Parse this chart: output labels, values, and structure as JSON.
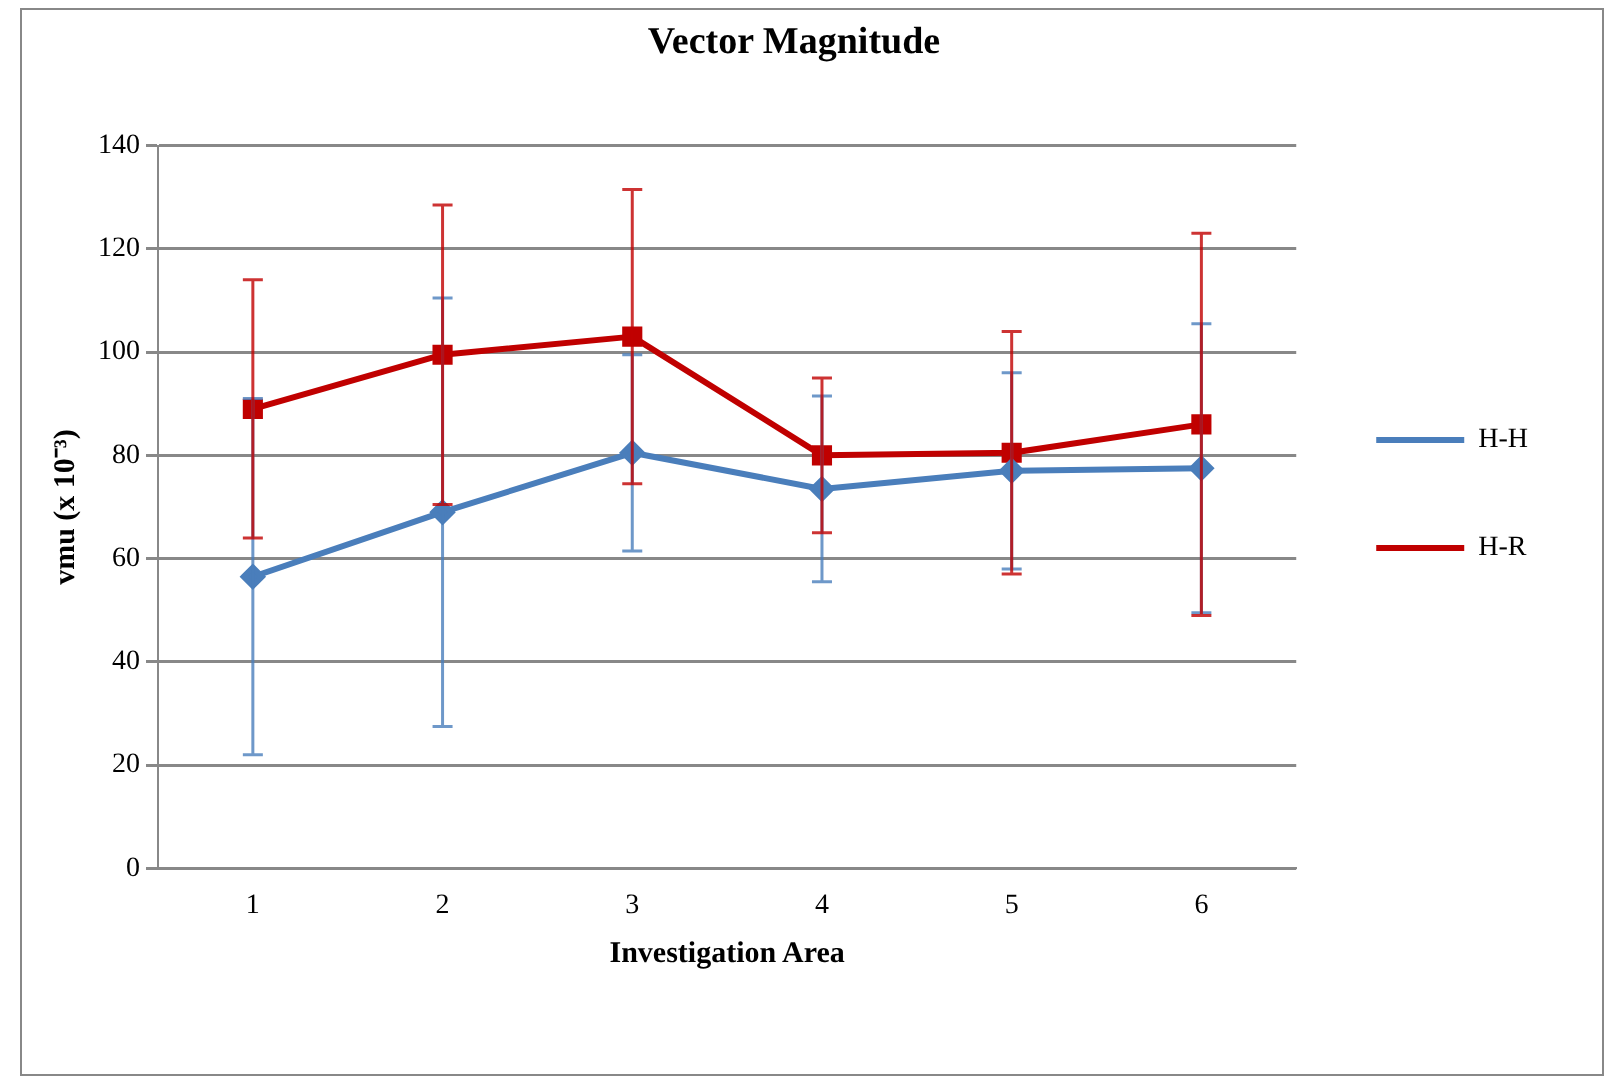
{
  "chart_data": {
    "type": "line",
    "title": "Vector Magnitude",
    "xlabel": "Investigation Area",
    "ylabel": "vmu (x 10⁻³)",
    "categories": [
      "1",
      "2",
      "3",
      "4",
      "5",
      "6"
    ],
    "series": [
      {
        "name": "H-H",
        "color": "#4a7ebb",
        "marker": "diamond",
        "values": [
          56.5,
          69,
          80.5,
          73.5,
          77,
          77.5
        ],
        "errors": [
          34.5,
          41.5,
          19,
          18,
          19,
          28
        ]
      },
      {
        "name": "H-R",
        "color": "#c00000",
        "marker": "square",
        "values": [
          89,
          99.5,
          103,
          80,
          80.5,
          86
        ],
        "errors": [
          25,
          29,
          28.5,
          15,
          23.5,
          37
        ]
      }
    ],
    "ylim": [
      0,
      140
    ],
    "yticks": [
      0,
      20,
      40,
      60,
      80,
      100,
      120,
      140
    ],
    "grid": "y",
    "legend": "right",
    "line_style": "solid"
  }
}
